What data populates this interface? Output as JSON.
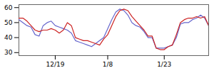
{
  "chart_data": {
    "type": "line",
    "categories": [
      null,
      null,
      null,
      null,
      null,
      null,
      null,
      null,
      null,
      "12/19",
      null,
      null,
      null,
      null,
      null,
      null,
      null,
      null,
      null,
      null,
      null,
      null,
      "1/8",
      null,
      null,
      null,
      null,
      null,
      null,
      null,
      null,
      null,
      null,
      null,
      null,
      null,
      "1/23",
      null,
      null,
      null,
      null,
      null,
      null,
      null,
      null,
      null,
      null,
      null
    ],
    "series": [
      {
        "color": "#6666cc",
        "values": [
          52,
          50,
          48,
          47,
          42,
          41,
          48,
          50,
          51,
          48,
          47,
          46,
          45,
          43,
          38,
          37,
          36,
          35,
          34,
          36,
          38,
          40,
          46,
          52,
          57,
          59,
          58,
          55,
          50,
          48,
          47,
          44,
          40,
          40,
          33,
          33,
          33,
          34,
          35,
          40,
          49,
          50,
          50,
          52,
          53,
          55,
          53,
          48
        ]
      },
      {
        "color": "#cc2222",
        "values": [
          53,
          53,
          51,
          48,
          45,
          44,
          45,
          45,
          46,
          45,
          43,
          45,
          50,
          48,
          40,
          39,
          38,
          38,
          37,
          36,
          35,
          39,
          42,
          48,
          54,
          58,
          59,
          58,
          54,
          51,
          48,
          45,
          41,
          41,
          33,
          32,
          32,
          34,
          35,
          42,
          50,
          52,
          53,
          53,
          54,
          53,
          54,
          48
        ]
      }
    ],
    "ylim": [
      28,
      62
    ],
    "yticks": [
      30,
      40,
      50,
      60
    ],
    "grid": false
  }
}
